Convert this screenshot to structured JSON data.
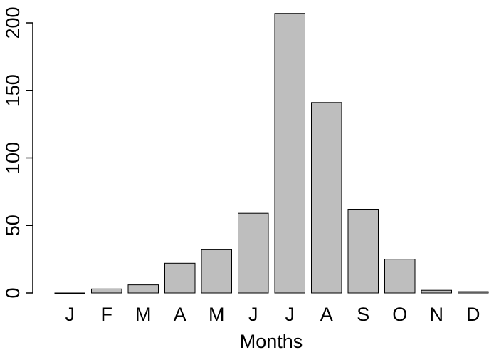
{
  "chart_data": {
    "type": "bar",
    "categories": [
      "J",
      "F",
      "M",
      "A",
      "M",
      "J",
      "J",
      "A",
      "S",
      "O",
      "N",
      "D"
    ],
    "values": [
      0,
      3,
      6,
      22,
      32,
      59,
      207,
      141,
      62,
      25,
      2,
      1
    ],
    "xlabel": "Months",
    "ylabel": "",
    "ylim": [
      0,
      200
    ],
    "yticks": [
      0,
      50,
      100,
      150,
      200
    ],
    "grid": false,
    "legend": "none",
    "bar_color": "#bebebe",
    "bar_edge_color": "#000000"
  }
}
